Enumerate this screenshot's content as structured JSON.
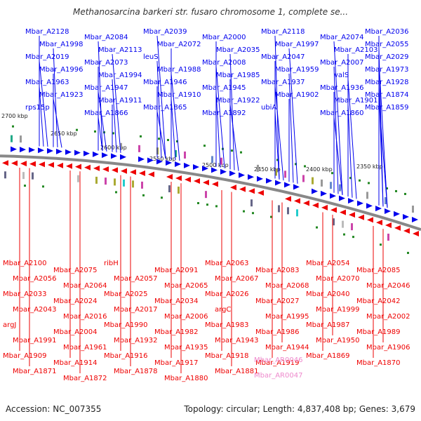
{
  "title": "Methanosarcina barkeri str. fusaro chromosome 1, complete se...",
  "footer": {
    "accession": "Accession: NC_007355",
    "summary": "Topology: circular; Length: 4,837,408 bp; Genes: 3,679"
  },
  "colors": {
    "forward": "#0000ee",
    "reverse": "#ee0000",
    "rna": "#ee88cc",
    "backbone": "#888888",
    "tick": "#228822"
  },
  "scale_labels": [
    "2700 kbp",
    "2650 kbp",
    "2600 kbp",
    "2550 kbp",
    "2500 kbp",
    "2450 kbp",
    "2400 kbp",
    "2350 kbp"
  ],
  "forward_labels": [
    "Mbar_A2128",
    "Mbar_A2084",
    "Mbar_A2039",
    "Mbar_A2000",
    "Mbar_A2118",
    "Mbar_A2074",
    "Mbar_A2036",
    "Mbar_A1998",
    "Mbar_A2113",
    "Mbar_A2072",
    "Mbar_A2035",
    "Mbar_A1997",
    "Mbar_A2103",
    "Mbar_A2055",
    "Mbar_A2019",
    "Mbar_A2073",
    "leuS",
    "Mbar_A2008",
    "Mbar_A2047",
    "Mbar_A2007",
    "Mbar_A2029",
    "Mbar_A1996",
    "Mbar_A1994",
    "Mbar_A1988",
    "Mbar_A1985",
    "Mbar_A1959",
    "valS",
    "Mbar_A1973",
    "Mbar_A1963",
    "Mbar_A1947",
    "Mbar_A1946",
    "Mbar_A1945",
    "Mbar_A1937",
    "Mbar_A1936",
    "Mbar_A1928",
    "Mbar_A1923",
    "Mbar_A1911",
    "Mbar_A1910",
    "Mbar_A1922",
    "Mbar_A1902",
    "Mbar_A1901",
    "Mbar_A1874",
    "rps15p",
    "Mbar_A1866",
    "Mbar_A1865",
    "Mbar_A1892",
    "ubiA",
    "Mbar_A1860",
    "Mbar_A1859"
  ],
  "reverse_labels": [
    "Mbar_A2100",
    "Mbar_A2075",
    "ribH",
    "Mbar_A2091",
    "Mbar_A2063",
    "Mbar_A2083",
    "Mbar_A2054",
    "Mbar_A2085",
    "Mbar_A2056",
    "Mbar_A2064",
    "Mbar_A2057",
    "Mbar_A2065",
    "Mbar_A2067",
    "Mbar_A2068",
    "Mbar_A2070",
    "Mbar_A2046",
    "Mbar_A2033",
    "Mbar_A2024",
    "Mbar_A2025",
    "Mbar_A2034",
    "Mbar_A2026",
    "Mbar_A2027",
    "Mbar_A2040",
    "Mbar_A2042",
    "Mbar_A2043",
    "Mbar_A2016",
    "Mbar_A2017",
    "Mbar_A2006",
    "argC",
    "Mbar_A1995",
    "Mbar_A1999",
    "Mbar_A2002",
    "argJ",
    "Mbar_A2004",
    "Mbar_A1990",
    "Mbar_A1982",
    "Mbar_A1983",
    "Mbar_A1986",
    "Mbar_A1987",
    "Mbar_A1989",
    "Mbar_A1991",
    "Mbar_A1961",
    "Mbar_A1932",
    "Mbar_A1935",
    "Mbar_A1943",
    "Mbar_A1944",
    "Mbar_A1950",
    "Mbar_A1906",
    "Mbar_A1909",
    "Mbar_A1914",
    "Mbar_A1916",
    "Mbar_A1917",
    "Mbar_A1918",
    "Mbar_A1919",
    "Mbar_A1869",
    "Mbar_A1870",
    "Mbar_A1871",
    "Mbar_A1872",
    "Mbar_A1878",
    "Mbar_A1880",
    "Mbar_A1881"
  ],
  "rna_labels": [
    "Mbar_AR0046",
    "Mbar_AR0047"
  ]
}
